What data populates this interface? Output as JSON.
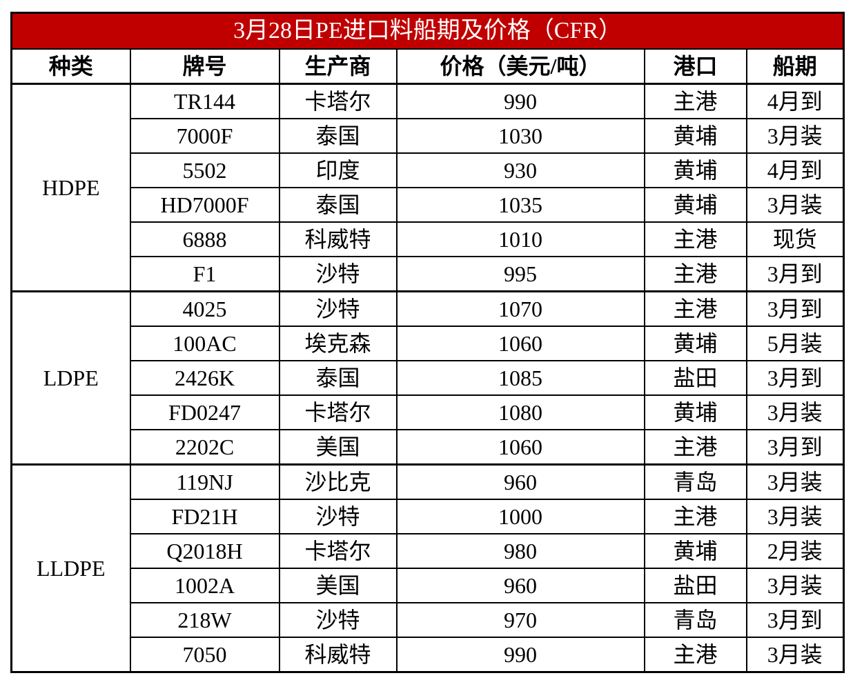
{
  "title": "3月28日PE进口料船期及价格（CFR）",
  "headers": [
    "种类",
    "牌号",
    "生产商",
    "价格（美元/吨）",
    "港口",
    "船期"
  ],
  "groups": [
    {
      "category": "HDPE",
      "rows": [
        [
          "TR144",
          "卡塔尔",
          990,
          "主港",
          "4月到"
        ],
        [
          "7000F",
          "泰国",
          1030,
          "黄埔",
          "3月装"
        ],
        [
          "5502",
          "印度",
          930,
          "黄埔",
          "4月到"
        ],
        [
          "HD7000F",
          "泰国",
          1035,
          "黄埔",
          "3月装"
        ],
        [
          "6888",
          "科威特",
          1010,
          "主港",
          "现货"
        ],
        [
          "F1",
          "沙特",
          995,
          "主港",
          "3月到"
        ]
      ]
    },
    {
      "category": "LDPE",
      "rows": [
        [
          "4025",
          "沙特",
          1070,
          "主港",
          "3月到"
        ],
        [
          "100AC",
          "埃克森",
          1060,
          "黄埔",
          "5月装"
        ],
        [
          "2426K",
          "泰国",
          1085,
          "盐田",
          "3月到"
        ],
        [
          "FD0247",
          "卡塔尔",
          1080,
          "黄埔",
          "3月装"
        ],
        [
          "2202C",
          "美国",
          1060,
          "主港",
          "3月到"
        ]
      ]
    },
    {
      "category": "LLDPE",
      "rows": [
        [
          "119NJ",
          "沙比克",
          960,
          "青岛",
          "3月装"
        ],
        [
          "FD21H",
          "沙特",
          1000,
          "主港",
          "3月装"
        ],
        [
          "Q2018H",
          "卡塔尔",
          980,
          "黄埔",
          "2月装"
        ],
        [
          "1002A",
          "美国",
          960,
          "盐田",
          "3月装"
        ],
        [
          "218W",
          "沙特",
          970,
          "青岛",
          "3月到"
        ],
        [
          "7050",
          "科威特",
          990,
          "主港",
          "3月装"
        ]
      ]
    }
  ]
}
